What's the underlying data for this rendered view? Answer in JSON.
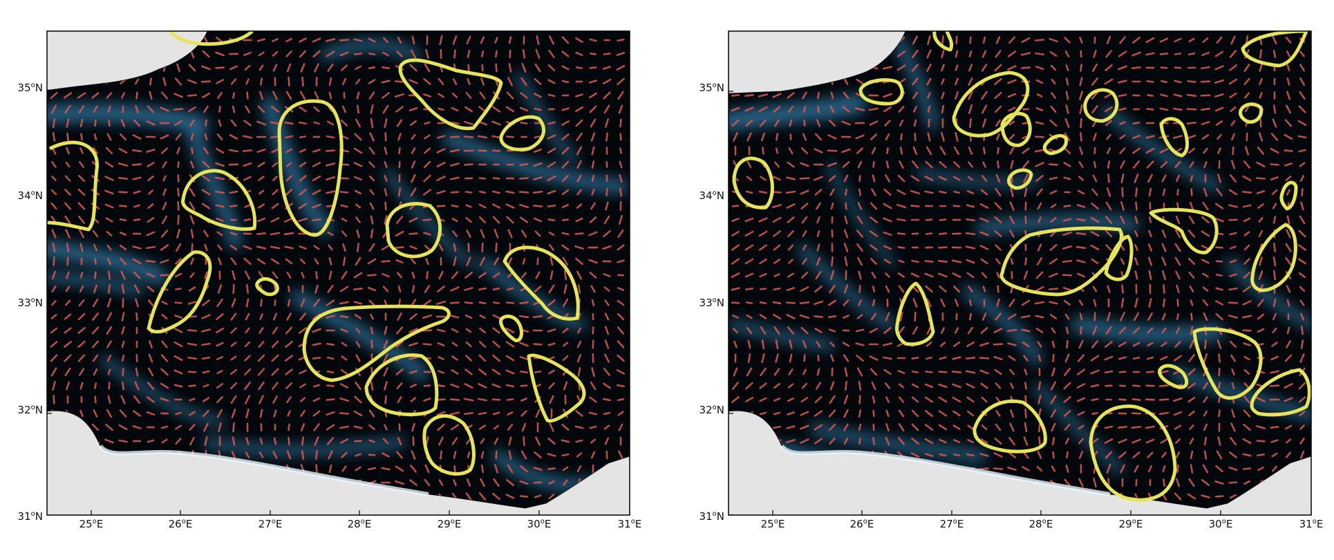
{
  "figure": {
    "panels": [
      {
        "id": "left",
        "xticks": [
          {
            "deg": "25",
            "dir": "E"
          },
          {
            "deg": "26",
            "dir": "E"
          },
          {
            "deg": "27",
            "dir": "E"
          },
          {
            "deg": "28",
            "dir": "E"
          },
          {
            "deg": "29",
            "dir": "E"
          },
          {
            "deg": "30",
            "dir": "E"
          },
          {
            "deg": "31",
            "dir": "E"
          }
        ],
        "yticks": [
          {
            "deg": "35",
            "dir": "N"
          },
          {
            "deg": "34",
            "dir": "N"
          },
          {
            "deg": "33",
            "dir": "N"
          },
          {
            "deg": "32",
            "dir": "N"
          },
          {
            "deg": "31",
            "dir": "N"
          }
        ]
      },
      {
        "id": "right",
        "xticks": [
          {
            "deg": "25",
            "dir": "E"
          },
          {
            "deg": "26",
            "dir": "E"
          },
          {
            "deg": "27",
            "dir": "E"
          },
          {
            "deg": "28",
            "dir": "E"
          },
          {
            "deg": "29",
            "dir": "E"
          },
          {
            "deg": "30",
            "dir": "E"
          },
          {
            "deg": "31",
            "dir": "E"
          }
        ],
        "yticks": [
          {
            "deg": "35",
            "dir": "N"
          },
          {
            "deg": "34",
            "dir": "N"
          },
          {
            "deg": "33",
            "dir": "N"
          },
          {
            "deg": "32",
            "dir": "N"
          },
          {
            "deg": "31",
            "dir": "N"
          }
        ]
      }
    ],
    "colors": {
      "ocean_dark": "#02070b",
      "ocean_mid": "#2f6d93",
      "ocean_bright": "#eaf6fb",
      "land": "#e4e4e4",
      "vectors": "#d0574f",
      "contours": "#e6e45a"
    }
  }
}
